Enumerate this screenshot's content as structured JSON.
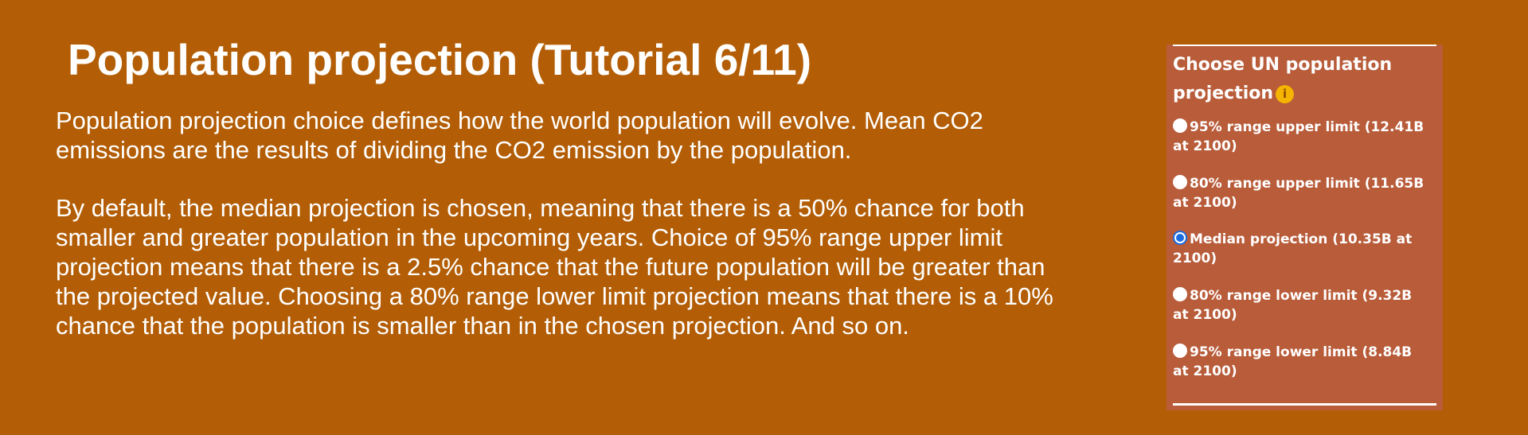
{
  "title": "Population projection (Tutorial 6/11)",
  "paragraphs": [
    "Population projection choice defines how the world population will evolve. Mean CO2 emissions are the results of dividing the CO2 emission by the population.",
    "By default, the median projection is chosen, meaning that there is a 50% chance for both smaller and greater population in the upcoming years. Choice of 95% range upper limit projection means that there is a 2.5% chance that the future population will be greater than the projected value. Choosing a 80% range lower limit projection means that there is a 10%  chance that the population is smaller than in the chosen projection. And so on."
  ],
  "panel": {
    "title": "Choose UN population projection",
    "info_icon": "info-icon",
    "selected_index": 2,
    "options": [
      {
        "label": "95% range upper limit (12.41B at 2100)",
        "checked": false
      },
      {
        "label": "80% range upper limit (11.65B at 2100)",
        "checked": false
      },
      {
        "label": "Median projection (10.35B at 2100)",
        "checked": true
      },
      {
        "label": "80% range lower limit (9.32B at 2100)",
        "checked": false
      },
      {
        "label": "95% range lower limit (8.84B at 2100)",
        "checked": false
      }
    ]
  },
  "colors": {
    "background": "#b35e06",
    "panel": "#b85c3a",
    "info_icon": "#f5b400",
    "radio_selected": "#1a6de0",
    "text": "#ffffff"
  }
}
